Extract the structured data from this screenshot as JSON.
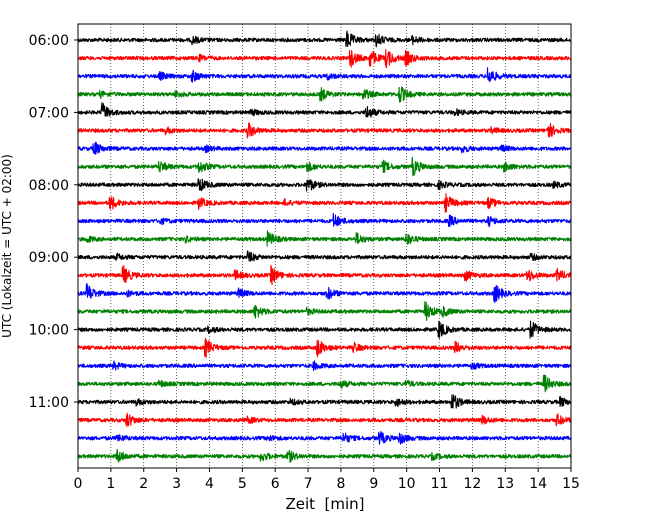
{
  "chart_data": {
    "type": "line",
    "subtype": "helicorder",
    "xlabel": "Zeit  [min]",
    "ylabel": "UTC (Lokalzeit = UTC + 02:00)",
    "xlim": [
      0,
      15
    ],
    "x_ticks": [
      "0",
      "1",
      "2",
      "3",
      "4",
      "5",
      "6",
      "7",
      "8",
      "9",
      "10",
      "11",
      "12",
      "13",
      "14",
      "15"
    ],
    "y_tick_labels": [
      "06:00",
      "07:00",
      "08:00",
      "09:00",
      "10:00",
      "11:00"
    ],
    "grid": {
      "x": true,
      "y": false,
      "style": "dotted"
    },
    "legend": "none",
    "trace_colors": [
      "#000000",
      "#ff0000",
      "#0000ff",
      "#008000"
    ],
    "row_start_times": [
      "06:00",
      "06:15",
      "06:30",
      "06:45",
      "07:00",
      "07:15",
      "07:30",
      "07:45",
      "08:00",
      "08:15",
      "08:30",
      "08:45",
      "09:00",
      "09:15",
      "09:30",
      "09:45",
      "10:00",
      "10:15",
      "10:30",
      "10:45",
      "11:00",
      "11:15",
      "11:30",
      "11:45"
    ],
    "series": [
      {
        "values": [
          [
            8.2,
            1.0
          ],
          [
            9.1,
            0.7
          ],
          [
            3.5,
            0.4
          ],
          [
            10.2,
            0.4
          ]
        ]
      },
      {
        "values": [
          [
            8.3,
            1.0
          ],
          [
            8.9,
            1.0
          ],
          [
            9.4,
            1.0
          ],
          [
            10.0,
            0.8
          ],
          [
            3.7,
            0.3
          ]
        ]
      },
      {
        "values": [
          [
            12.5,
            1.0
          ],
          [
            3.5,
            0.6
          ],
          [
            2.5,
            0.4
          ],
          [
            7.6,
            0.3
          ]
        ]
      },
      {
        "values": [
          [
            9.8,
            1.0
          ],
          [
            7.4,
            0.7
          ],
          [
            8.7,
            0.6
          ],
          [
            3.0,
            0.3
          ],
          [
            0.7,
            0.3
          ]
        ]
      },
      {
        "values": [
          [
            0.75,
            1.0
          ],
          [
            8.8,
            0.7
          ],
          [
            5.3,
            0.3
          ],
          [
            11.5,
            0.3
          ]
        ]
      },
      {
        "values": [
          [
            5.2,
            0.8
          ],
          [
            14.3,
            1.0
          ],
          [
            2.7,
            0.3
          ],
          [
            12.6,
            0.3
          ]
        ]
      },
      {
        "values": [
          [
            0.5,
            0.8
          ],
          [
            11.7,
            0.4
          ],
          [
            3.9,
            0.3
          ],
          [
            12.9,
            0.3
          ]
        ]
      },
      {
        "values": [
          [
            10.2,
            1.0
          ],
          [
            2.5,
            0.6
          ],
          [
            3.7,
            0.7
          ],
          [
            7.0,
            0.5
          ],
          [
            9.3,
            0.6
          ],
          [
            13.0,
            0.5
          ]
        ]
      },
      {
        "values": [
          [
            3.7,
            0.8
          ],
          [
            7.0,
            0.8
          ],
          [
            11.0,
            0.4
          ],
          [
            14.5,
            0.3
          ]
        ]
      },
      {
        "values": [
          [
            1.0,
            0.8
          ],
          [
            3.7,
            0.6
          ],
          [
            11.2,
            1.0
          ],
          [
            12.5,
            0.6
          ],
          [
            6.3,
            0.3
          ]
        ]
      },
      {
        "values": [
          [
            7.8,
            0.8
          ],
          [
            11.3,
            0.6
          ],
          [
            2.5,
            0.3
          ],
          [
            12.5,
            0.5
          ]
        ]
      },
      {
        "values": [
          [
            5.8,
            0.8
          ],
          [
            8.5,
            0.6
          ],
          [
            10.0,
            0.7
          ],
          [
            0.3,
            0.3
          ],
          [
            3.3,
            0.3
          ]
        ]
      },
      {
        "values": [
          [
            5.2,
            0.6
          ],
          [
            1.2,
            0.3
          ],
          [
            13.8,
            0.3
          ]
        ]
      },
      {
        "values": [
          [
            1.4,
            1.0
          ],
          [
            4.8,
            0.5
          ],
          [
            5.9,
            1.0
          ],
          [
            11.8,
            0.6
          ],
          [
            13.7,
            0.7
          ],
          [
            14.6,
            0.7
          ]
        ]
      },
      {
        "values": [
          [
            0.3,
            1.0
          ],
          [
            4.9,
            0.5
          ],
          [
            7.6,
            0.7
          ],
          [
            12.7,
            1.0
          ],
          [
            1.5,
            0.3
          ]
        ]
      },
      {
        "values": [
          [
            10.6,
            1.0
          ],
          [
            5.4,
            0.8
          ],
          [
            11.1,
            0.5
          ],
          [
            7.0,
            0.3
          ]
        ]
      },
      {
        "values": [
          [
            11.0,
            1.0
          ],
          [
            13.8,
            1.0
          ],
          [
            4.0,
            0.3
          ]
        ]
      },
      {
        "values": [
          [
            3.9,
            1.0
          ],
          [
            7.3,
            1.0
          ],
          [
            8.4,
            0.5
          ],
          [
            11.5,
            0.6
          ]
        ]
      },
      {
        "values": [
          [
            1.1,
            0.4
          ],
          [
            7.2,
            0.4
          ],
          [
            12.0,
            0.3
          ]
        ]
      },
      {
        "values": [
          [
            14.2,
            1.0
          ],
          [
            8.0,
            0.4
          ],
          [
            2.5,
            0.3
          ],
          [
            10.0,
            0.3
          ]
        ]
      },
      {
        "values": [
          [
            11.4,
            1.0
          ],
          [
            14.7,
            0.5
          ],
          [
            6.5,
            0.3
          ],
          [
            9.7,
            0.4
          ],
          [
            1.8,
            0.3
          ]
        ]
      },
      {
        "values": [
          [
            1.5,
            0.8
          ],
          [
            12.3,
            0.5
          ],
          [
            14.6,
            0.6
          ],
          [
            5.2,
            0.3
          ]
        ]
      },
      {
        "values": [
          [
            8.1,
            0.6
          ],
          [
            9.2,
            0.7
          ],
          [
            9.8,
            0.6
          ],
          [
            1.2,
            0.4
          ],
          [
            5.8,
            0.3
          ]
        ]
      },
      {
        "values": [
          [
            1.2,
            0.8
          ],
          [
            6.4,
            0.7
          ],
          [
            5.6,
            0.5
          ],
          [
            10.8,
            0.3
          ]
        ]
      }
    ]
  }
}
